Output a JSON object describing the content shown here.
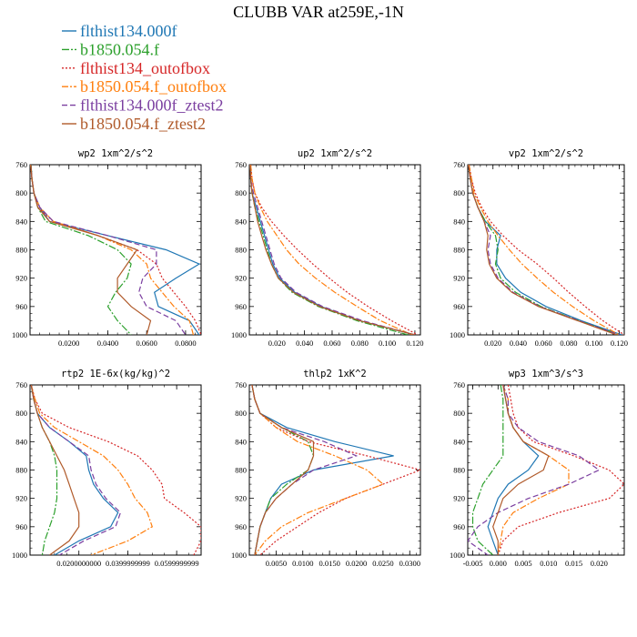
{
  "title": "CLUBB VAR at259E,-1N",
  "series": [
    {
      "name": "flthist134.000f",
      "color": "#1f77b4",
      "dash": ""
    },
    {
      "name": "b1850.054.f",
      "color": "#2ca02c",
      "dash": "8,2,2,2"
    },
    {
      "name": "flthist134_outofbox",
      "color": "#d62728",
      "dash": "2,2"
    },
    {
      "name": "b1850.054.f_outofbox",
      "color": "#ff7f0e",
      "dash": "7,2,2,2"
    },
    {
      "name": "flthist134.000f_ztest2",
      "color": "#7b3fa0",
      "dash": "6,3"
    },
    {
      "name": "b1850.054.f_ztest2",
      "color": "#b05a2a",
      "dash": ""
    }
  ],
  "chart_data": [
    {
      "type": "line",
      "title": "wp2  1xm^2/s^2",
      "xlim": [
        0,
        0.088
      ],
      "ylim": [
        760,
        1000
      ],
      "y_inverted": true,
      "yticks": [
        760,
        800,
        840,
        880,
        920,
        960,
        1000
      ],
      "xticks": [
        0.02,
        0.04,
        0.06,
        0.08
      ],
      "xticklabels": [
        "0.0200",
        "0.0400",
        "0.0600",
        "0.0800"
      ],
      "y": [
        760,
        780,
        800,
        820,
        840,
        860,
        880,
        900,
        920,
        940,
        960,
        980,
        1000
      ],
      "series": [
        {
          "values": [
            0.0005,
            0.001,
            0.002,
            0.005,
            0.01,
            0.04,
            0.07,
            0.087,
            0.075,
            0.064,
            0.066,
            0.082,
            0.087
          ]
        },
        {
          "values": [
            0.0005,
            0.001,
            0.002,
            0.004,
            0.008,
            0.03,
            0.045,
            0.052,
            0.05,
            0.044,
            0.04,
            0.045,
            0.052
          ]
        },
        {
          "values": [
            0.0003,
            0.001,
            0.002,
            0.004,
            0.012,
            0.035,
            0.055,
            0.065,
            0.068,
            0.074,
            0.08,
            0.085,
            0.088
          ]
        },
        {
          "values": [
            0.0003,
            0.001,
            0.002,
            0.005,
            0.012,
            0.035,
            0.052,
            0.06,
            0.062,
            0.068,
            0.074,
            0.082,
            0.084
          ]
        },
        {
          "values": [
            0.0004,
            0.001,
            0.002,
            0.005,
            0.012,
            0.04,
            0.065,
            0.065,
            0.058,
            0.056,
            0.06,
            0.075,
            0.08
          ]
        },
        {
          "values": [
            0.0004,
            0.001,
            0.002,
            0.004,
            0.01,
            0.035,
            0.055,
            0.05,
            0.045,
            0.045,
            0.052,
            0.062,
            0.06
          ]
        }
      ]
    },
    {
      "type": "line",
      "title": "up2  1xm^2/s^2",
      "xlim": [
        0,
        0.124
      ],
      "ylim": [
        760,
        1000
      ],
      "y_inverted": true,
      "yticks": [
        760,
        800,
        840,
        880,
        920,
        960,
        1000
      ],
      "xticks": [
        0.02,
        0.04,
        0.06,
        0.08,
        0.1,
        0.12
      ],
      "xticklabels": [
        "0.020",
        "0.040",
        "0.060",
        "0.080",
        "0.100",
        "0.120"
      ],
      "y": [
        760,
        780,
        800,
        820,
        840,
        860,
        880,
        900,
        920,
        940,
        960,
        980,
        1000
      ],
      "series": [
        {
          "values": [
            0.0005,
            0.001,
            0.002,
            0.005,
            0.008,
            0.011,
            0.014,
            0.017,
            0.022,
            0.033,
            0.052,
            0.08,
            0.12
          ]
        },
        {
          "values": [
            0.0005,
            0.001,
            0.002,
            0.004,
            0.007,
            0.01,
            0.013,
            0.016,
            0.021,
            0.031,
            0.05,
            0.078,
            0.115
          ]
        },
        {
          "values": [
            0.001,
            0.002,
            0.004,
            0.009,
            0.016,
            0.025,
            0.035,
            0.046,
            0.058,
            0.071,
            0.086,
            0.103,
            0.122
          ]
        },
        {
          "values": [
            0.001,
            0.002,
            0.004,
            0.008,
            0.013,
            0.02,
            0.027,
            0.036,
            0.048,
            0.062,
            0.078,
            0.095,
            0.118
          ]
        },
        {
          "values": [
            0.0005,
            0.001,
            0.003,
            0.006,
            0.009,
            0.012,
            0.015,
            0.018,
            0.023,
            0.034,
            0.053,
            0.082,
            0.12
          ]
        },
        {
          "values": [
            0.0005,
            0.001,
            0.002,
            0.004,
            0.006,
            0.009,
            0.012,
            0.016,
            0.021,
            0.032,
            0.051,
            0.08,
            0.12
          ]
        }
      ]
    },
    {
      "type": "line",
      "title": "vp2  1xm^2/s^2",
      "xlim": [
        0,
        0.124
      ],
      "ylim": [
        760,
        1000
      ],
      "y_inverted": true,
      "yticks": [
        760,
        800,
        840,
        880,
        920,
        960,
        1000
      ],
      "xticks": [
        0.02,
        0.04,
        0.06,
        0.08,
        0.1,
        0.12
      ],
      "xticklabels": [
        "0.020",
        "0.040",
        "0.060",
        "0.080",
        "0.100",
        "0.120"
      ],
      "y": [
        760,
        780,
        800,
        820,
        840,
        860,
        880,
        900,
        920,
        940,
        960,
        980,
        1000
      ],
      "series": [
        {
          "values": [
            0.0005,
            0.002,
            0.004,
            0.008,
            0.014,
            0.026,
            0.023,
            0.023,
            0.03,
            0.042,
            0.062,
            0.09,
            0.122
          ]
        },
        {
          "values": [
            0.0005,
            0.002,
            0.004,
            0.008,
            0.014,
            0.022,
            0.024,
            0.022,
            0.026,
            0.038,
            0.058,
            0.088,
            0.12
          ]
        },
        {
          "values": [
            0.001,
            0.003,
            0.006,
            0.011,
            0.018,
            0.028,
            0.04,
            0.055,
            0.068,
            0.08,
            0.093,
            0.107,
            0.124
          ]
        },
        {
          "values": [
            0.001,
            0.003,
            0.005,
            0.01,
            0.016,
            0.024,
            0.033,
            0.043,
            0.055,
            0.068,
            0.083,
            0.1,
            0.12
          ]
        },
        {
          "values": [
            0.0005,
            0.002,
            0.004,
            0.008,
            0.013,
            0.018,
            0.016,
            0.018,
            0.024,
            0.036,
            0.057,
            0.088,
            0.12
          ]
        },
        {
          "values": [
            0.0005,
            0.002,
            0.004,
            0.008,
            0.013,
            0.016,
            0.015,
            0.017,
            0.023,
            0.035,
            0.056,
            0.087,
            0.118
          ]
        }
      ]
    },
    {
      "type": "line",
      "title": "rtp2  1E-6x(kg/kg)^2",
      "xlim": [
        0,
        0.07
      ],
      "ylim": [
        760,
        1000
      ],
      "y_inverted": true,
      "yticks": [
        760,
        800,
        840,
        880,
        920,
        960,
        1000
      ],
      "xticks": [
        0.02,
        0.04,
        0.06
      ],
      "xticklabels": [
        "0.0200000000",
        "0.0399999999",
        "0.0599999999"
      ],
      "y": [
        760,
        780,
        800,
        820,
        840,
        860,
        880,
        900,
        920,
        940,
        960,
        980,
        1000
      ],
      "series": [
        {
          "values": [
            0.0005,
            0.0015,
            0.003,
            0.008,
            0.016,
            0.023,
            0.024,
            0.026,
            0.03,
            0.036,
            0.033,
            0.02,
            0.01
          ]
        },
        {
          "values": [
            0.0005,
            0.0015,
            0.003,
            0.005,
            0.008,
            0.01,
            0.011,
            0.011,
            0.011,
            0.01,
            0.008,
            0.006,
            0.005
          ]
        },
        {
          "values": [
            0.0005,
            0.002,
            0.005,
            0.016,
            0.032,
            0.044,
            0.05,
            0.054,
            0.055,
            0.063,
            0.07,
            0.07,
            0.067
          ]
        },
        {
          "values": [
            0.0005,
            0.002,
            0.004,
            0.01,
            0.02,
            0.03,
            0.036,
            0.04,
            0.043,
            0.048,
            0.05,
            0.04,
            0.025
          ]
        },
        {
          "values": [
            0.0005,
            0.0015,
            0.003,
            0.008,
            0.016,
            0.024,
            0.025,
            0.027,
            0.031,
            0.037,
            0.035,
            0.022,
            0.012
          ]
        },
        {
          "values": [
            0.0005,
            0.0015,
            0.003,
            0.005,
            0.008,
            0.011,
            0.014,
            0.016,
            0.018,
            0.02,
            0.02,
            0.016,
            0.008
          ]
        }
      ]
    },
    {
      "type": "line",
      "title": "thlp2  1xK^2",
      "xlim": [
        0,
        0.032
      ],
      "ylim": [
        760,
        1000
      ],
      "y_inverted": true,
      "yticks": [
        760,
        800,
        840,
        880,
        920,
        960,
        1000
      ],
      "xticks": [
        0.005,
        0.01,
        0.015,
        0.02,
        0.025,
        0.03
      ],
      "xticklabels": [
        "0.0050",
        "0.0100",
        "0.0150",
        "0.0200",
        "0.0250",
        "0.0300"
      ],
      "y": [
        760,
        780,
        800,
        820,
        840,
        860,
        880,
        900,
        920,
        940,
        960,
        980,
        1000
      ],
      "series": [
        {
          "values": [
            0.0005,
            0.001,
            0.002,
            0.007,
            0.016,
            0.027,
            0.012,
            0.006,
            0.004,
            0.003,
            0.002,
            0.0015,
            0.001
          ]
        },
        {
          "values": [
            0.0005,
            0.001,
            0.002,
            0.006,
            0.011,
            0.012,
            0.011,
            0.007,
            0.004,
            0.003,
            0.002,
            0.0015,
            0.001
          ]
        },
        {
          "values": [
            0.0005,
            0.001,
            0.002,
            0.005,
            0.011,
            0.022,
            0.032,
            0.025,
            0.018,
            0.013,
            0.009,
            0.005,
            0.002
          ]
        },
        {
          "values": [
            0.0005,
            0.001,
            0.002,
            0.005,
            0.009,
            0.016,
            0.022,
            0.025,
            0.018,
            0.011,
            0.006,
            0.003,
            0.001
          ]
        },
        {
          "values": [
            0.0005,
            0.001,
            0.002,
            0.006,
            0.014,
            0.02,
            0.012,
            0.008,
            0.005,
            0.003,
            0.002,
            0.0015,
            0.001
          ]
        },
        {
          "values": [
            0.0005,
            0.001,
            0.002,
            0.006,
            0.012,
            0.012,
            0.011,
            0.008,
            0.005,
            0.003,
            0.002,
            0.0015,
            0.001
          ]
        }
      ]
    },
    {
      "type": "line",
      "title": "wp3  1xm^3/s^3",
      "xlim": [
        -0.006,
        0.025
      ],
      "ylim": [
        760,
        1000
      ],
      "y_inverted": true,
      "yticks": [
        760,
        800,
        840,
        880,
        920,
        960,
        1000
      ],
      "xticks": [
        -0.005,
        0.0,
        0.005,
        0.01,
        0.015,
        0.02
      ],
      "xticklabels": [
        "-0.005",
        "0.000",
        "0.005",
        "0.010",
        "0.015",
        "0.020"
      ],
      "y": [
        760,
        780,
        800,
        820,
        840,
        860,
        880,
        900,
        920,
        940,
        960,
        980,
        1000
      ],
      "series": [
        {
          "values": [
            0.001,
            0.0015,
            0.002,
            0.003,
            0.005,
            0.008,
            0.006,
            0.002,
            0.0,
            -0.001,
            -0.002,
            -0.001,
            0.0
          ]
        },
        {
          "values": [
            0.0005,
            0.001,
            0.001,
            0.001,
            0.001,
            0.001,
            -0.001,
            -0.003,
            -0.004,
            -0.005,
            -0.005,
            -0.004,
            -0.001
          ]
        },
        {
          "values": [
            0.002,
            0.0025,
            0.003,
            0.004,
            0.007,
            0.015,
            0.022,
            0.025,
            0.022,
            0.012,
            0.004,
            0.001,
            0.0
          ]
        },
        {
          "values": [
            0.001,
            0.002,
            0.002,
            0.003,
            0.005,
            0.01,
            0.014,
            0.014,
            0.008,
            0.003,
            0.001,
            0.0005,
            0.0
          ]
        },
        {
          "values": [
            0.001,
            0.002,
            0.002,
            0.004,
            0.008,
            0.016,
            0.02,
            0.014,
            0.006,
            0.0,
            -0.004,
            -0.006,
            -0.002
          ]
        },
        {
          "values": [
            0.001,
            0.0015,
            0.002,
            0.003,
            0.005,
            0.01,
            0.009,
            0.004,
            0.001,
            0.0,
            -0.001,
            0.0,
            0.0
          ]
        }
      ]
    }
  ]
}
